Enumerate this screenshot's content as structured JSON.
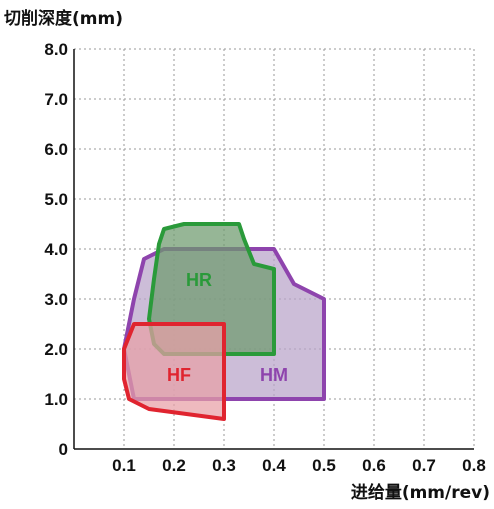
{
  "chart_data": {
    "type": "area",
    "title": "",
    "ylabel": "切削深度(mm)",
    "xlabel": "进给量(mm/rev)",
    "xlim": [
      0,
      0.8
    ],
    "ylim": [
      0,
      8.0
    ],
    "grid": true,
    "x_ticks": [
      "0.1",
      "0.2",
      "0.3",
      "0.4",
      "0.5",
      "0.6",
      "0.7",
      "0.8"
    ],
    "y_ticks": [
      "0",
      "1.0",
      "2.0",
      "3.0",
      "4.0",
      "5.0",
      "6.0",
      "7.0",
      "8.0"
    ],
    "x_tick_values": [
      0.1,
      0.2,
      0.3,
      0.4,
      0.5,
      0.6,
      0.7,
      0.8
    ],
    "y_tick_values": [
      0,
      1,
      2,
      3,
      4,
      5,
      6,
      7,
      8
    ],
    "series": [
      {
        "name": "HM",
        "stroke": "#8e44ad",
        "fill": "#b9a3c9",
        "points": [
          [
            0.12,
            1.0
          ],
          [
            0.1,
            2.0
          ],
          [
            0.12,
            3.0
          ],
          [
            0.14,
            3.8
          ],
          [
            0.18,
            4.0
          ],
          [
            0.4,
            4.0
          ],
          [
            0.44,
            3.3
          ],
          [
            0.5,
            3.0
          ],
          [
            0.5,
            1.0
          ],
          [
            0.12,
            1.0
          ]
        ]
      },
      {
        "name": "HR",
        "stroke": "#2a9a3a",
        "fill": "#6e9a6e",
        "points": [
          [
            0.18,
            1.9
          ],
          [
            0.16,
            2.1
          ],
          [
            0.15,
            2.6
          ],
          [
            0.16,
            3.4
          ],
          [
            0.17,
            4.1
          ],
          [
            0.18,
            4.4
          ],
          [
            0.22,
            4.5
          ],
          [
            0.33,
            4.5
          ],
          [
            0.34,
            4.2
          ],
          [
            0.36,
            3.7
          ],
          [
            0.4,
            3.6
          ],
          [
            0.4,
            1.9
          ],
          [
            0.18,
            1.9
          ]
        ]
      },
      {
        "name": "HF",
        "stroke": "#e0242f",
        "fill": "#e8a0a6",
        "points": [
          [
            0.3,
            0.6
          ],
          [
            0.15,
            0.8
          ],
          [
            0.11,
            1.0
          ],
          [
            0.1,
            1.4
          ],
          [
            0.1,
            2.0
          ],
          [
            0.12,
            2.5
          ],
          [
            0.3,
            2.5
          ],
          [
            0.3,
            0.6
          ]
        ]
      }
    ],
    "labels": [
      {
        "text": "HR",
        "x": 0.25,
        "y": 3.4,
        "color": "#2a9a3a"
      },
      {
        "text": "HF",
        "x": 0.21,
        "y": 1.5,
        "color": "#e0242f"
      },
      {
        "text": "HM",
        "x": 0.4,
        "y": 1.5,
        "color": "#8e44ad"
      }
    ]
  }
}
